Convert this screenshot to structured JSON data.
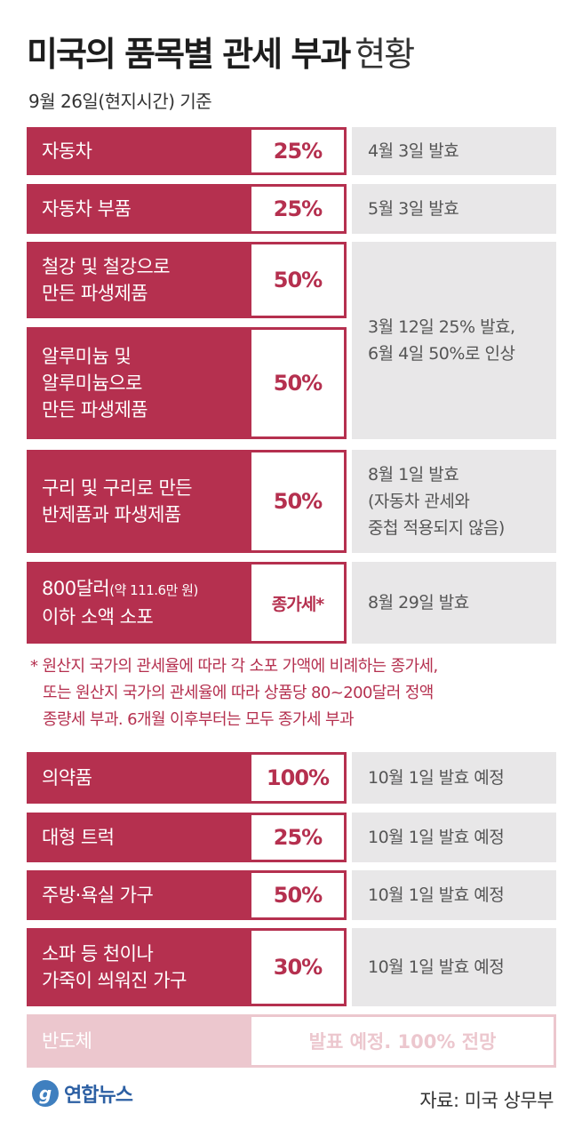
{
  "title": {
    "main": "미국의 품목별 관세 부과",
    "suffix": "현황"
  },
  "subtitle": "9월 26일(현지시간) 기준",
  "rows": [
    {
      "category_lines": [
        "자동차"
      ],
      "rate": "25%",
      "note_lines": [
        "4월 3일 발효"
      ]
    },
    {
      "category_lines": [
        "자동차 부품"
      ],
      "rate": "25%",
      "note_lines": [
        "5월 3일 발효"
      ]
    },
    {
      "category_lines": [
        "철강 및 철강으로",
        "만든 파생제품"
      ],
      "rate": "50%"
    },
    {
      "category_lines": [
        "알루미늄 및",
        "알루미늄으로",
        "만든 파생제품"
      ],
      "rate": "50%"
    },
    {
      "category_lines": [
        "구리 및 구리로 만든",
        "반제품과 파생제품"
      ],
      "rate": "50%",
      "note_lines": [
        "8월 1일 발효",
        "(자동차 관세와",
        "중첩 적용되지 않음)"
      ]
    },
    {
      "category_lines": [
        "800달러",
        "(약 111.6만 원)",
        "이하 소액 소포"
      ],
      "rate": "종가세*",
      "note_lines": [
        "8월 29일 발효"
      ]
    },
    {
      "category_lines": [
        "의약품"
      ],
      "rate": "100%",
      "note_lines": [
        "10월 1일 발효 예정"
      ]
    },
    {
      "category_lines": [
        "대형 트럭"
      ],
      "rate": "25%",
      "note_lines": [
        "10월 1일 발효 예정"
      ]
    },
    {
      "category_lines": [
        "주방·욕실 가구"
      ],
      "rate": "50%",
      "note_lines": [
        "10월 1일 발효 예정"
      ]
    },
    {
      "category_lines": [
        "소파 등 천이나",
        "가죽이 씌워진 가구"
      ],
      "rate": "30%",
      "note_lines": [
        "10월 1일 발효 예정"
      ]
    },
    {
      "category_lines": [
        "반도체"
      ],
      "note": "발표 예정. 100% 전망"
    }
  ],
  "merged_note_lines": [
    "3월 12일 25% 발효,",
    "6월 4일 50%로 인상"
  ],
  "footnote_lines": [
    "* 원산지 국가의 관세율에 따라 각 소포 가액에 비례하는 종가세,",
    "또는 원산지 국가의 관세율에 따라 상품당 80~200달러 정액",
    "종량세 부과. 6개월 이후부터는 모두 종가세 부과"
  ],
  "logo": {
    "mark": "g",
    "text": "연합뉴스"
  },
  "source": "자료: 미국 상무부",
  "colors": {
    "accent": "#b5304f",
    "note_bg": "#e8e7e8",
    "faded": "#ecc7ce"
  }
}
